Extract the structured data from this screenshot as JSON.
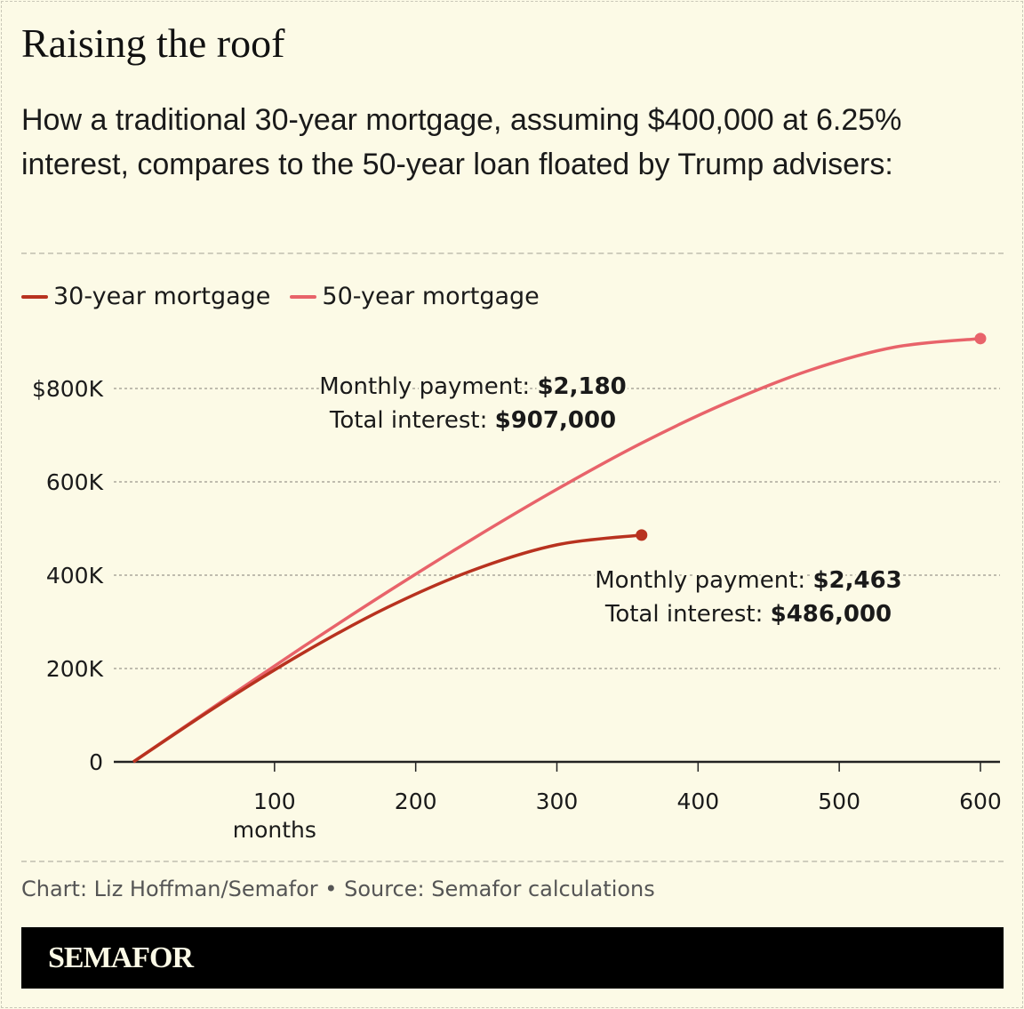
{
  "title": "Raising the roof",
  "subtitle": "How a traditional 30-year mortgage, assuming $400,000 at 6.25% interest, compares to the 50-year loan floated by Trump advisers:",
  "source": "Chart: Liz Hoffman/Semafor • Source: Semafor calculations",
  "brand": "SEMAFOR",
  "colors": {
    "background": "#fcfae6",
    "series_30": "#b8321f",
    "series_50": "#e8636a"
  },
  "chart_data": {
    "type": "line",
    "xlabel": "months",
    "ylabel": "",
    "xlim": [
      0,
      600
    ],
    "ylim": [
      0,
      900000
    ],
    "x_ticks": [
      100,
      200,
      300,
      400,
      500,
      600
    ],
    "x_tick_labels": [
      "100",
      "200",
      "300",
      "400",
      "500",
      "600"
    ],
    "y_ticks": [
      0,
      200000,
      400000,
      600000,
      800000
    ],
    "y_tick_labels": [
      "0",
      "200K",
      "400K",
      "600K",
      "800K"
    ],
    "grid": "horizontal dashed",
    "legend": "top-left",
    "series": [
      {
        "name": "30-year mortgage",
        "x": [
          0,
          60,
          120,
          180,
          240,
          300,
          360
        ],
        "y": [
          0,
          121000,
          233000,
          331000,
          410000,
          465000,
          486000
        ]
      },
      {
        "name": "50-year mortgage",
        "x": [
          0,
          60,
          120,
          180,
          240,
          300,
          360,
          420,
          480,
          540,
          600
        ],
        "y": [
          0,
          124000,
          246000,
          364000,
          477000,
          584000,
          683000,
          769000,
          840000,
          889000,
          907000
        ]
      }
    ],
    "annotations": [
      {
        "series": "50-year mortgage",
        "line1_label": "Monthly payment: ",
        "line1_value": "$2,180",
        "line2_label": "Total interest: ",
        "line2_value": "$907,000"
      },
      {
        "series": "30-year mortgage",
        "line1_label": "Monthly payment: ",
        "line1_value": "$2,463",
        "line2_label": "Total interest: ",
        "line2_value": "$486,000"
      }
    ]
  }
}
